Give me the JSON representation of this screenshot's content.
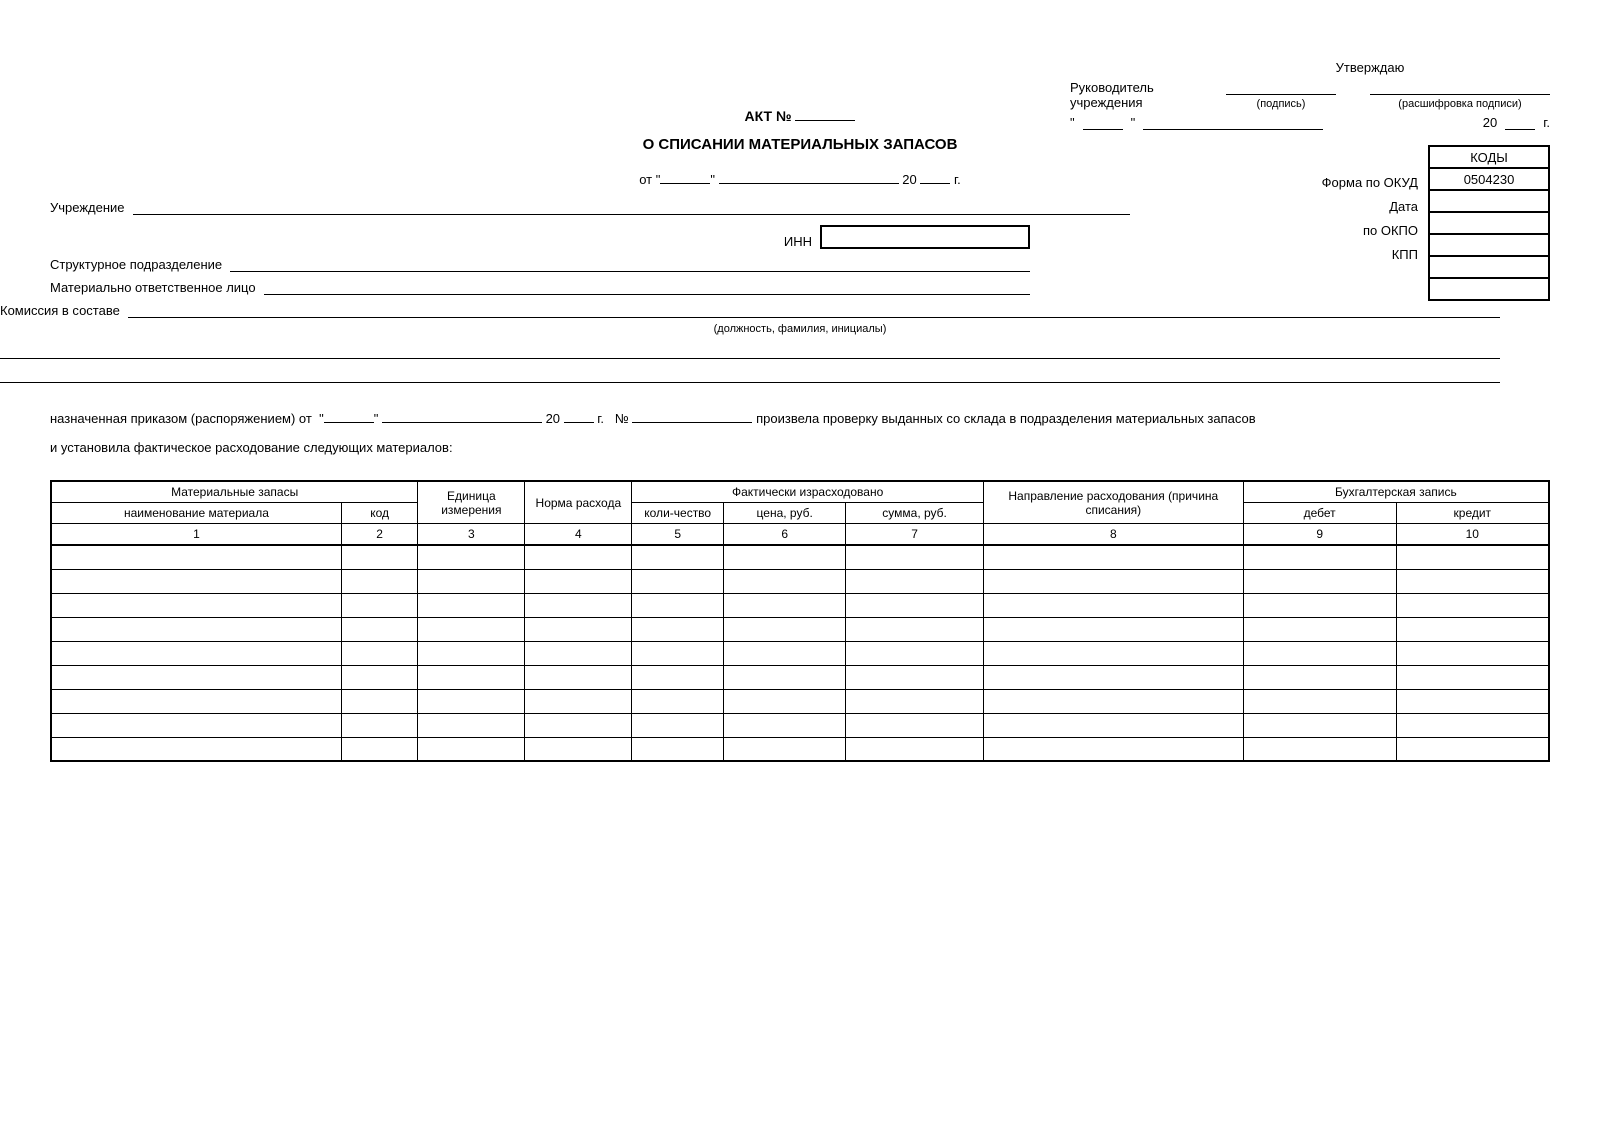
{
  "approve": {
    "title": "Утверждаю",
    "head1": "Руководитель",
    "head2": "учреждения",
    "sig_hint": "(подпись)",
    "decode_hint": "(расшифровка подписи)",
    "year_prefix": "20",
    "year_suffix": "г."
  },
  "title": {
    "act": "АКТ №",
    "main": "О СПИСАНИИ МАТЕРИАЛЬНЫХ ЗАПАСОВ",
    "from": "от",
    "year_prefix": "20",
    "year_suffix": "г."
  },
  "codes": {
    "header": "КОДЫ",
    "okud_label": "Форма по ОКУД",
    "okud_value": "0504230",
    "date_label": "Дата",
    "okpo_label": "по ОКПО",
    "kpp_label": "КПП"
  },
  "fields": {
    "institution": "Учреждение",
    "inn": "ИНН",
    "subdivision": "Структурное подразделение",
    "responsible": "Материально ответственное лицо",
    "commission": "Комиссия в составе",
    "commission_hint": "(должность, фамилия, инициалы)"
  },
  "order": {
    "prefix": "назначенная приказом (распоряжением) от",
    "year_prefix": "20",
    "year_suffix": "г.",
    "num": "№",
    "suffix": "произвела проверку выданных со склада в подразделения материальных запасов",
    "line2": "и установила фактическое расходование следующих материалов:"
  },
  "table": {
    "grp_materials": "Материальные запасы",
    "grp_actual": "Фактически израсходовано",
    "grp_direction": "Направление расходования (причина списания)",
    "grp_acc": "Бухгалтерская запись",
    "col_name": "наименование материала",
    "col_code": "код",
    "col_unit": "Единица измерения",
    "col_norm": "Норма расхода",
    "col_qty": "коли-чество",
    "col_price": "цена, руб.",
    "col_sum": "сумма, руб.",
    "col_debit": "дебет",
    "col_credit": "кредит",
    "nums": [
      "1",
      "2",
      "3",
      "4",
      "5",
      "6",
      "7",
      "8",
      "9",
      "10"
    ],
    "empty_rows": 9,
    "col_widths_pct": [
      19,
      5,
      7,
      7,
      6,
      8,
      9,
      17,
      10,
      10
    ]
  },
  "style": {
    "text_color": "#000000",
    "background": "#ffffff",
    "border_color": "#000000"
  }
}
